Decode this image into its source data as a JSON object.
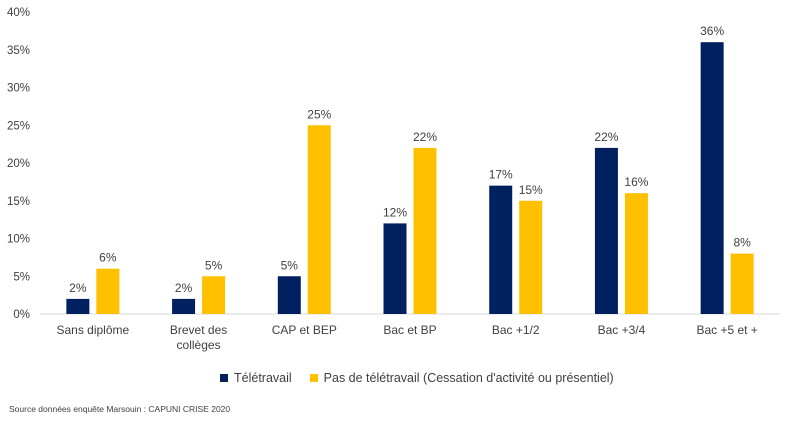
{
  "chart_data": {
    "type": "bar",
    "categories": [
      [
        "Sans diplôme"
      ],
      [
        "Brevet des",
        "collèges"
      ],
      [
        "CAP et BEP"
      ],
      [
        "Bac et BP"
      ],
      [
        "Bac +1/2"
      ],
      [
        "Bac +3/4"
      ],
      [
        "Bac +5 et +"
      ]
    ],
    "series": [
      {
        "name": "Télétravail",
        "color": "#002060",
        "values": [
          2,
          2,
          5,
          12,
          17,
          22,
          36
        ]
      },
      {
        "name": "Pas de télétravail (Cessation d'activité ou présentiel)",
        "color": "#FFC000",
        "values": [
          6,
          5,
          25,
          22,
          15,
          16,
          8
        ]
      }
    ],
    "ylim": [
      0,
      40
    ],
    "yticks": [
      0,
      5,
      10,
      15,
      20,
      25,
      30,
      35,
      40
    ],
    "value_suffix": "%",
    "legend_position": "bottom",
    "grid": false
  },
  "source": "Source données enquête Marsouin : CAPUNI CRISE 2020"
}
